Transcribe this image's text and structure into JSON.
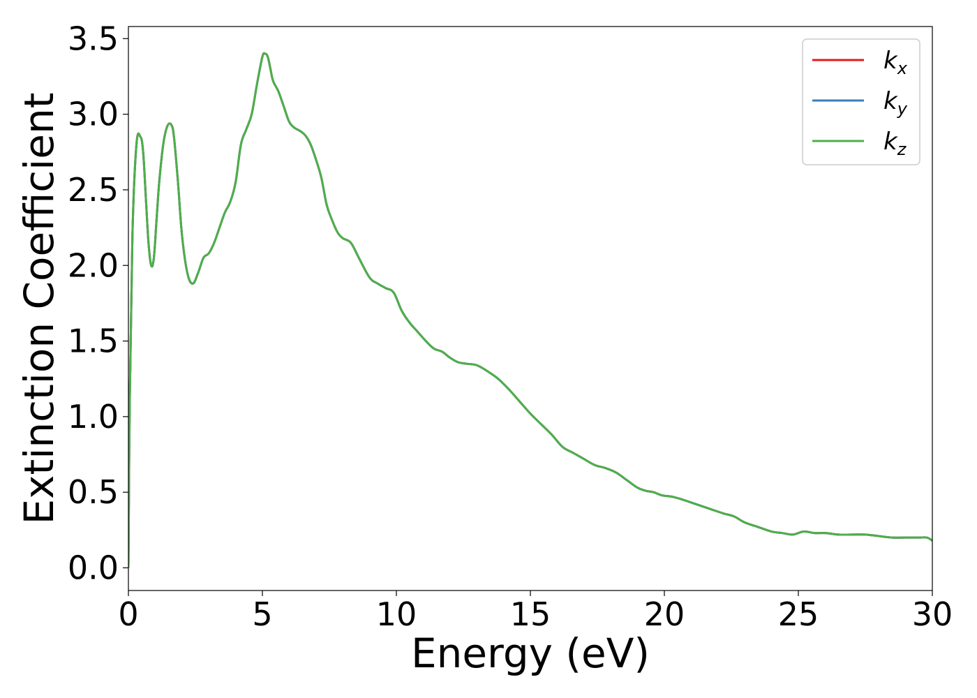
{
  "chart_data": {
    "type": "line",
    "xlabel": "Energy (eV)",
    "ylabel": "Extinction Coefficient",
    "xlim": [
      0,
      30
    ],
    "ylim": [
      -0.15,
      3.58
    ],
    "xticks": [
      "0",
      "5",
      "10",
      "15",
      "20",
      "25",
      "30"
    ],
    "xtick_values": [
      0,
      5,
      10,
      15,
      20,
      25,
      30
    ],
    "yticks": [
      "0.0",
      "0.5",
      "1.0",
      "1.5",
      "2.0",
      "2.5",
      "3.0",
      "3.5"
    ],
    "ytick_values": [
      0.0,
      0.5,
      1.0,
      1.5,
      2.0,
      2.5,
      3.0,
      3.5
    ],
    "grid": false,
    "legend_position": "top-right",
    "colors": {
      "kx": "#e41a1c",
      "ky": "#377eb8",
      "kz": "#4daf4a"
    },
    "x": [
      0,
      0.05,
      0.15,
      0.3,
      0.45,
      0.55,
      0.65,
      0.75,
      0.85,
      0.95,
      1.05,
      1.15,
      1.3,
      1.45,
      1.6,
      1.7,
      1.85,
      2.0,
      2.2,
      2.4,
      2.6,
      2.8,
      3.0,
      3.2,
      3.4,
      3.6,
      3.8,
      4.0,
      4.2,
      4.4,
      4.6,
      4.8,
      5.0,
      5.1,
      5.2,
      5.3,
      5.4,
      5.6,
      5.8,
      6.0,
      6.2,
      6.4,
      6.6,
      6.8,
      7.0,
      7.2,
      7.4,
      7.6,
      7.8,
      8.0,
      8.3,
      8.6,
      9.0,
      9.3,
      9.6,
      9.9,
      10.2,
      10.5,
      10.8,
      11.1,
      11.4,
      11.7,
      12.0,
      12.3,
      12.6,
      13.0,
      13.4,
      13.8,
      14.2,
      14.6,
      15.0,
      15.4,
      15.8,
      16.2,
      16.6,
      17.0,
      17.4,
      17.8,
      18.2,
      18.6,
      19.0,
      19.3,
      19.6,
      19.9,
      20.3,
      20.7,
      21.2,
      21.7,
      22.2,
      22.6,
      23.0,
      23.5,
      24.0,
      24.4,
      24.8,
      25.2,
      25.6,
      26.0,
      26.5,
      27.0,
      27.5,
      28.0,
      28.5,
      29.0,
      29.5,
      29.8,
      30.0
    ],
    "series": [
      {
        "name": "k_x",
        "values": [
          0.0,
          1.1,
          2.2,
          2.8,
          2.85,
          2.75,
          2.45,
          2.15,
          2.0,
          2.05,
          2.3,
          2.55,
          2.8,
          2.92,
          2.93,
          2.85,
          2.55,
          2.2,
          1.95,
          1.88,
          1.95,
          2.05,
          2.08,
          2.15,
          2.25,
          2.35,
          2.42,
          2.55,
          2.8,
          2.9,
          3.0,
          3.2,
          3.38,
          3.4,
          3.38,
          3.3,
          3.22,
          3.15,
          3.05,
          2.95,
          2.91,
          2.89,
          2.86,
          2.8,
          2.7,
          2.58,
          2.4,
          2.3,
          2.22,
          2.18,
          2.15,
          2.05,
          1.92,
          1.88,
          1.85,
          1.82,
          1.7,
          1.62,
          1.56,
          1.5,
          1.45,
          1.43,
          1.39,
          1.36,
          1.35,
          1.34,
          1.3,
          1.25,
          1.18,
          1.1,
          1.02,
          0.95,
          0.88,
          0.8,
          0.76,
          0.72,
          0.68,
          0.66,
          0.63,
          0.58,
          0.53,
          0.51,
          0.5,
          0.48,
          0.47,
          0.45,
          0.42,
          0.39,
          0.36,
          0.34,
          0.3,
          0.27,
          0.24,
          0.23,
          0.22,
          0.24,
          0.23,
          0.23,
          0.22,
          0.22,
          0.22,
          0.21,
          0.2,
          0.2,
          0.2,
          0.2,
          0.18
        ]
      },
      {
        "name": "k_y",
        "values": [
          0.0,
          1.1,
          2.2,
          2.8,
          2.85,
          2.75,
          2.45,
          2.15,
          2.0,
          2.05,
          2.3,
          2.55,
          2.8,
          2.92,
          2.93,
          2.85,
          2.55,
          2.2,
          1.95,
          1.88,
          1.95,
          2.05,
          2.08,
          2.15,
          2.25,
          2.35,
          2.42,
          2.55,
          2.8,
          2.9,
          3.0,
          3.2,
          3.38,
          3.4,
          3.38,
          3.3,
          3.22,
          3.15,
          3.05,
          2.95,
          2.91,
          2.89,
          2.86,
          2.8,
          2.7,
          2.58,
          2.4,
          2.3,
          2.22,
          2.18,
          2.15,
          2.05,
          1.92,
          1.88,
          1.85,
          1.82,
          1.7,
          1.62,
          1.56,
          1.5,
          1.45,
          1.43,
          1.39,
          1.36,
          1.35,
          1.34,
          1.3,
          1.25,
          1.18,
          1.1,
          1.02,
          0.95,
          0.88,
          0.8,
          0.76,
          0.72,
          0.68,
          0.66,
          0.63,
          0.58,
          0.53,
          0.51,
          0.5,
          0.48,
          0.47,
          0.45,
          0.42,
          0.39,
          0.36,
          0.34,
          0.3,
          0.27,
          0.24,
          0.23,
          0.22,
          0.24,
          0.23,
          0.23,
          0.22,
          0.22,
          0.22,
          0.21,
          0.2,
          0.2,
          0.2,
          0.2,
          0.18
        ]
      },
      {
        "name": "k_z",
        "values": [
          0.0,
          1.1,
          2.2,
          2.8,
          2.85,
          2.75,
          2.45,
          2.15,
          2.0,
          2.05,
          2.3,
          2.55,
          2.8,
          2.92,
          2.93,
          2.85,
          2.55,
          2.2,
          1.95,
          1.88,
          1.95,
          2.05,
          2.08,
          2.15,
          2.25,
          2.35,
          2.42,
          2.55,
          2.8,
          2.9,
          3.0,
          3.2,
          3.38,
          3.4,
          3.38,
          3.3,
          3.22,
          3.15,
          3.05,
          2.95,
          2.91,
          2.89,
          2.86,
          2.8,
          2.7,
          2.58,
          2.4,
          2.3,
          2.22,
          2.18,
          2.15,
          2.05,
          1.92,
          1.88,
          1.85,
          1.82,
          1.7,
          1.62,
          1.56,
          1.5,
          1.45,
          1.43,
          1.39,
          1.36,
          1.35,
          1.34,
          1.3,
          1.25,
          1.18,
          1.1,
          1.02,
          0.95,
          0.88,
          0.8,
          0.76,
          0.72,
          0.68,
          0.66,
          0.63,
          0.58,
          0.53,
          0.51,
          0.5,
          0.48,
          0.47,
          0.45,
          0.42,
          0.39,
          0.36,
          0.34,
          0.3,
          0.27,
          0.24,
          0.23,
          0.22,
          0.24,
          0.23,
          0.23,
          0.22,
          0.22,
          0.22,
          0.21,
          0.2,
          0.2,
          0.2,
          0.2,
          0.18
        ]
      }
    ],
    "legend": [
      {
        "base": "k",
        "sub": "x",
        "series": "k_x"
      },
      {
        "base": "k",
        "sub": "y",
        "series": "k_y"
      },
      {
        "base": "k",
        "sub": "z",
        "series": "k_z"
      }
    ]
  }
}
